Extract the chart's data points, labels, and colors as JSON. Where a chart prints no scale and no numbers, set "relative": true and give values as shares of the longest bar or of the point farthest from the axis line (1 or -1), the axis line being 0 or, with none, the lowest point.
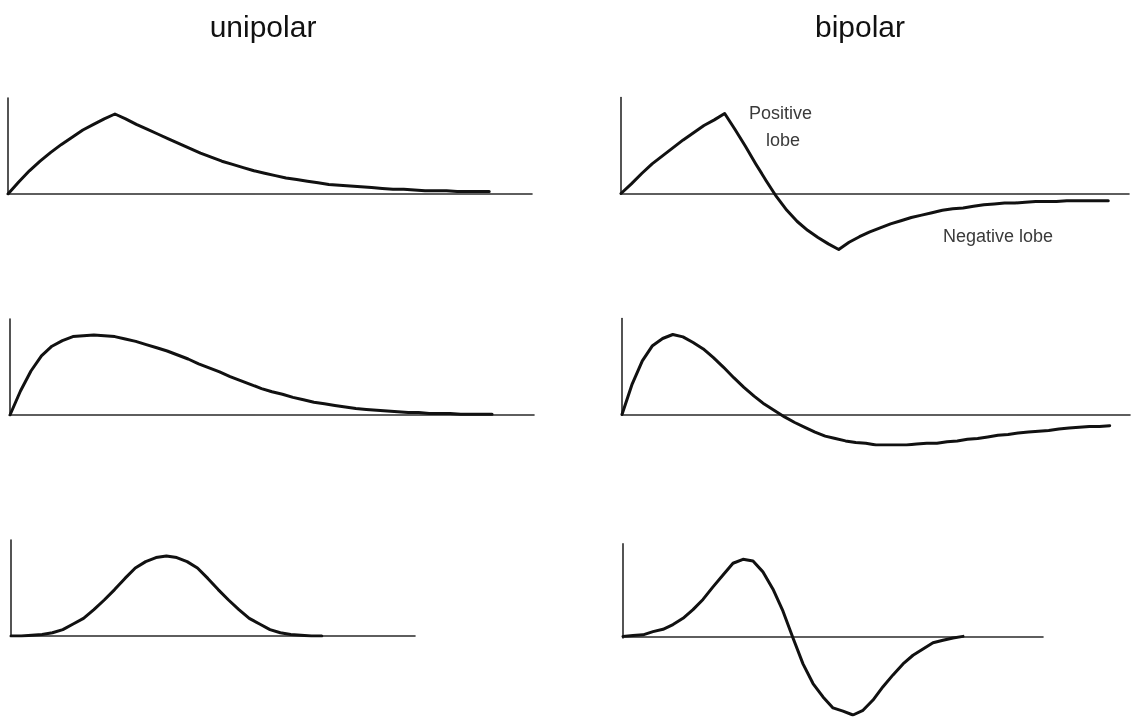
{
  "chart_data": [
    {
      "type": "line",
      "title": "unipolar",
      "relative": true,
      "line_style": "solid",
      "categories": [
        null,
        null,
        null,
        null,
        null,
        null,
        null,
        null,
        null,
        null,
        null,
        null,
        null,
        null,
        null,
        null,
        null,
        null,
        null,
        null,
        null,
        null,
        null,
        null,
        null,
        null,
        null,
        null,
        null,
        null,
        null,
        null,
        null,
        null,
        null,
        null,
        null,
        null,
        null,
        null,
        null,
        null,
        null,
        null,
        null,
        null,
        null,
        null,
        null,
        null
      ],
      "series": [
        {
          "color": "#111111",
          "values": [
            0,
            0.15,
            0.29,
            0.41,
            0.52,
            0.62,
            0.71,
            0.8,
            0.87,
            0.94,
            1,
            0.94,
            0.87,
            0.81,
            0.75,
            0.69,
            0.63,
            0.57,
            0.51,
            0.46,
            0.41,
            0.37,
            0.33,
            0.29,
            0.26,
            0.23,
            0.2,
            0.18,
            0.16,
            0.14,
            0.12,
            0.11,
            0.1,
            0.09,
            0.08,
            0.07,
            0.06,
            0.06,
            0.05,
            0.04,
            0.04,
            0.04,
            0.03,
            0.03,
            0.03,
            0.03,
            null,
            null,
            null,
            null
          ]
        }
      ]
    },
    {
      "type": "line",
      "title": "bipolar",
      "relative": true,
      "line_style": "solid",
      "annotations": [
        "Positive lobe",
        "Negative lobe"
      ],
      "categories": [
        null,
        null,
        null,
        null,
        null,
        null,
        null,
        null,
        null,
        null,
        null,
        null,
        null,
        null,
        null,
        null,
        null,
        null,
        null,
        null,
        null,
        null,
        null,
        null,
        null,
        null,
        null,
        null,
        null,
        null,
        null,
        null,
        null,
        null,
        null,
        null,
        null,
        null,
        null,
        null,
        null,
        null,
        null,
        null,
        null,
        null,
        null,
        null,
        null,
        null
      ],
      "series": [
        {
          "color": "#111111",
          "values": [
            0,
            0.12,
            0.25,
            0.37,
            0.47,
            0.57,
            0.67,
            0.76,
            0.85,
            0.92,
            1,
            0.8,
            0.59,
            0.37,
            0.16,
            -0.04,
            -0.21,
            -0.35,
            -0.46,
            -0.55,
            -0.63,
            -0.7,
            -0.61,
            -0.54,
            -0.48,
            -0.43,
            -0.38,
            -0.34,
            -0.3,
            -0.27,
            -0.24,
            -0.21,
            -0.19,
            -0.18,
            -0.16,
            -0.14,
            -0.13,
            -0.12,
            -0.12,
            -0.11,
            -0.1,
            -0.1,
            -0.1,
            -0.09,
            -0.09,
            -0.09,
            -0.09,
            -0.09,
            null,
            null
          ]
        }
      ]
    },
    {
      "type": "line",
      "relative": true,
      "line_style": "solid",
      "categories": [
        null,
        null,
        null,
        null,
        null,
        null,
        null,
        null,
        null,
        null,
        null,
        null,
        null,
        null,
        null,
        null,
        null,
        null,
        null,
        null,
        null,
        null,
        null,
        null,
        null,
        null,
        null,
        null,
        null,
        null,
        null,
        null,
        null,
        null,
        null,
        null,
        null,
        null,
        null,
        null,
        null,
        null,
        null,
        null,
        null,
        null,
        null,
        null,
        null,
        null,
        null
      ],
      "series": [
        {
          "color": "#111111",
          "values": [
            0,
            0.3,
            0.55,
            0.74,
            0.86,
            0.93,
            0.98,
            0.99,
            1,
            0.99,
            0.98,
            0.95,
            0.92,
            0.88,
            0.84,
            0.8,
            0.75,
            0.7,
            0.64,
            0.59,
            0.54,
            0.48,
            0.43,
            0.38,
            0.33,
            0.29,
            0.26,
            0.22,
            0.19,
            0.16,
            0.14,
            0.12,
            0.1,
            0.08,
            0.07,
            0.06,
            0.05,
            0.04,
            0.03,
            0.03,
            0.02,
            0.02,
            0.02,
            0.01,
            0.01,
            0.01,
            0.01,
            null,
            null,
            null,
            null
          ]
        }
      ]
    },
    {
      "type": "line",
      "relative": true,
      "line_style": "solid",
      "categories": [
        null,
        null,
        null,
        null,
        null,
        null,
        null,
        null,
        null,
        null,
        null,
        null,
        null,
        null,
        null,
        null,
        null,
        null,
        null,
        null,
        null,
        null,
        null,
        null,
        null,
        null,
        null,
        null,
        null,
        null,
        null,
        null,
        null,
        null,
        null,
        null,
        null,
        null,
        null,
        null,
        null,
        null,
        null,
        null,
        null,
        null,
        null,
        null,
        null,
        null,
        null
      ],
      "series": [
        {
          "color": "#111111",
          "values": [
            0,
            0.38,
            0.67,
            0.86,
            0.95,
            1,
            0.97,
            0.9,
            0.82,
            0.71,
            0.59,
            0.46,
            0.34,
            0.23,
            0.13,
            0.05,
            -0.03,
            -0.1,
            -0.16,
            -0.22,
            -0.27,
            -0.3,
            -0.33,
            -0.35,
            -0.36,
            -0.38,
            -0.38,
            -0.38,
            -0.38,
            -0.37,
            -0.36,
            -0.36,
            -0.34,
            -0.33,
            -0.31,
            -0.3,
            -0.28,
            -0.26,
            -0.25,
            -0.23,
            -0.22,
            -0.21,
            -0.2,
            -0.18,
            -0.17,
            -0.16,
            -0.15,
            -0.15,
            -0.14,
            null,
            null
          ]
        }
      ]
    },
    {
      "type": "line",
      "relative": true,
      "line_style": "solid",
      "categories": [
        null,
        null,
        null,
        null,
        null,
        null,
        null,
        null,
        null,
        null,
        null,
        null,
        null,
        null,
        null,
        null,
        null,
        null,
        null,
        null,
        null,
        null,
        null,
        null,
        null,
        null,
        null,
        null,
        null,
        null,
        null,
        null,
        null,
        null,
        null,
        null,
        null,
        null,
        null,
        null
      ],
      "series": [
        {
          "color": "#111111",
          "values": [
            0,
            0,
            0.01,
            0.02,
            0.04,
            0.08,
            0.15,
            0.22,
            0.33,
            0.45,
            0.58,
            0.72,
            0.85,
            0.93,
            0.98,
            1,
            0.98,
            0.93,
            0.85,
            0.72,
            0.58,
            0.45,
            0.33,
            0.22,
            0.15,
            0.08,
            0.04,
            0.02,
            0.01,
            0,
            0,
            null,
            null,
            null,
            null,
            null,
            null,
            null,
            null,
            null
          ]
        }
      ]
    },
    {
      "type": "line",
      "relative": true,
      "line_style": "solid",
      "categories": [
        null,
        null,
        null,
        null,
        null,
        null,
        null,
        null,
        null,
        null,
        null,
        null,
        null,
        null,
        null,
        null,
        null,
        null,
        null,
        null,
        null,
        null,
        null,
        null,
        null,
        null,
        null,
        null,
        null,
        null,
        null,
        null,
        null,
        null,
        null,
        null,
        null,
        null,
        null,
        null,
        null,
        null,
        null
      ],
      "series": [
        {
          "color": "#111111",
          "values": [
            0,
            0.01,
            0.02,
            0.06,
            0.09,
            0.15,
            0.23,
            0.34,
            0.47,
            0.63,
            0.78,
            0.93,
            0.98,
            0.96,
            0.82,
            0.6,
            0.32,
            -0.02,
            -0.35,
            -0.6,
            -0.77,
            -0.91,
            -0.95,
            -1,
            -0.94,
            -0.81,
            -0.64,
            -0.49,
            -0.35,
            -0.24,
            -0.16,
            -0.08,
            -0.05,
            -0.02,
            0,
            null,
            null,
            null,
            null,
            null,
            null,
            null,
            null
          ]
        }
      ]
    }
  ]
}
